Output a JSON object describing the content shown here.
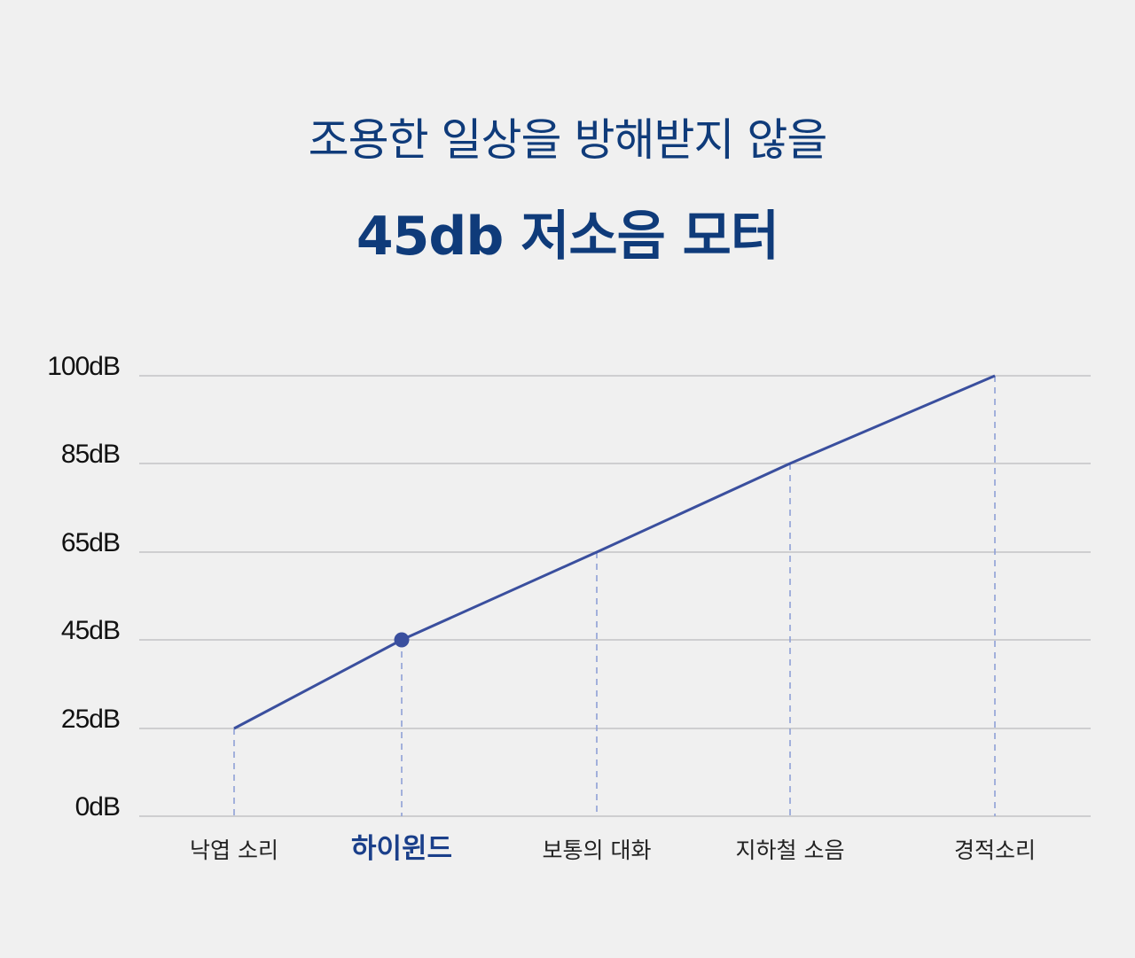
{
  "title": "조용한 일상을 방해받지 않을",
  "subtitle": "45db 저소음 모터",
  "colors": {
    "title": "#0f3b7a",
    "line": "#3a4f9e",
    "dash": "#8fa0d6",
    "grid": "#c2c2c6",
    "highlight_label": "#1a3f8a"
  },
  "chart_data": {
    "type": "line",
    "title": "",
    "xlabel": "",
    "ylabel": "",
    "categories": [
      "낙엽 소리",
      "하이윈드",
      "보통의 대화",
      "지하철 소음",
      "경적소리"
    ],
    "values": [
      25,
      45,
      65,
      85,
      100
    ],
    "y_ticks": [
      0,
      25,
      45,
      65,
      85,
      100
    ],
    "y_tick_labels": [
      "0dB",
      "25dB",
      "45dB",
      "65dB",
      "85dB",
      "100dB"
    ],
    "highlight_category": "하이윈드",
    "grid": true,
    "legend": "none"
  }
}
